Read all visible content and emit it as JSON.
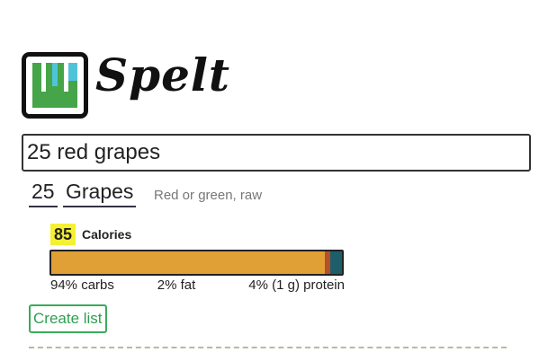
{
  "app": {
    "name": "Spelt"
  },
  "search": {
    "value": "25 red grapes"
  },
  "result": {
    "quantity": "25",
    "food": "Grapes",
    "description": "Red or green, raw",
    "calories": "85",
    "calories_label": "Calories",
    "macros": [
      {
        "value": 94,
        "label": "94% carbs",
        "color": "#e0a035"
      },
      {
        "value": 2,
        "label": "2% fat",
        "color": "#b5502a"
      },
      {
        "value": 4,
        "label": "4% (1 g) protein",
        "color": "#1d5e6a"
      }
    ]
  },
  "actions": {
    "create_list": "Create list"
  }
}
